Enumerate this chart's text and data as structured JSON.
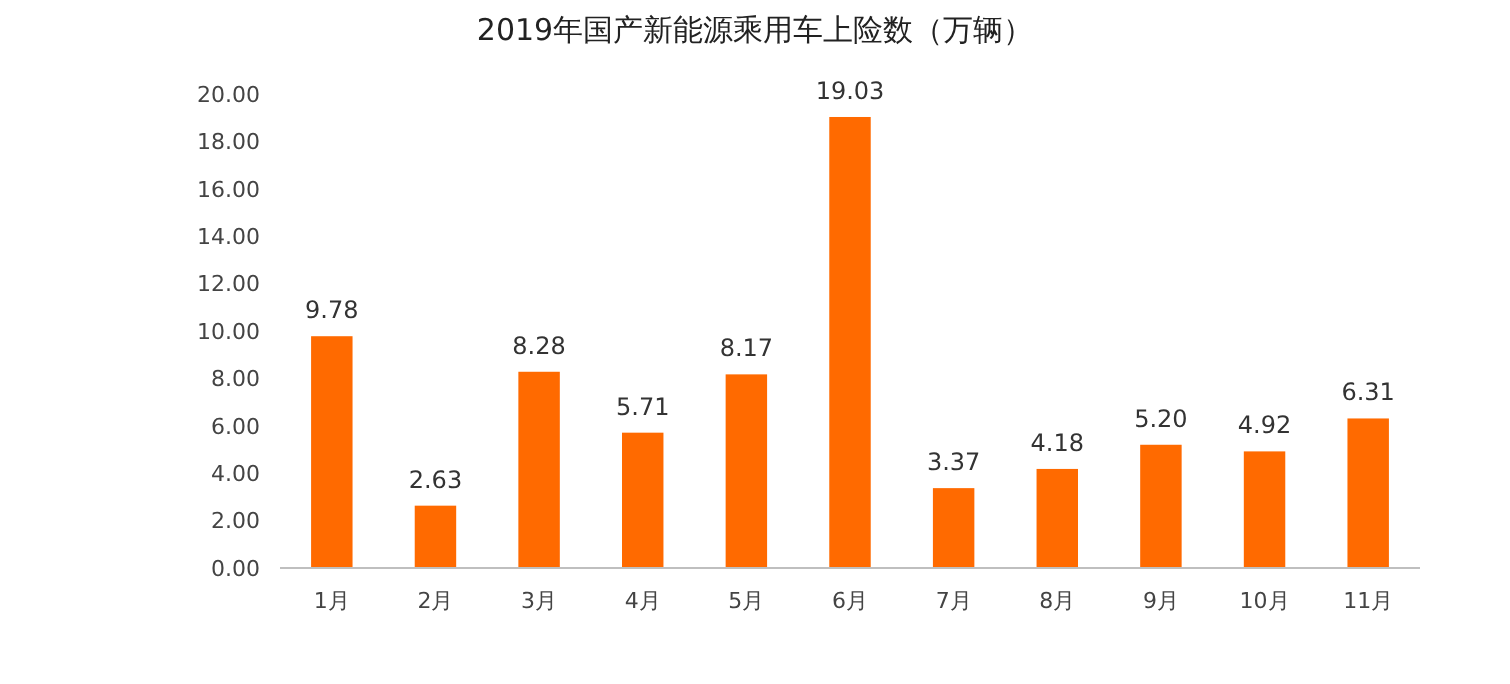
{
  "chart_data": {
    "type": "bar",
    "title": "2019年国产新能源乘用车上险数（万辆）",
    "categories": [
      "1月",
      "2月",
      "3月",
      "4月",
      "5月",
      "6月",
      "7月",
      "8月",
      "9月",
      "10月",
      "11月"
    ],
    "values": [
      9.78,
      2.63,
      8.28,
      5.71,
      8.17,
      19.03,
      3.37,
      4.18,
      5.2,
      4.92,
      6.31
    ],
    "value_labels": [
      "9.78",
      "2.63",
      "8.28",
      "5.71",
      "8.17",
      "19.03",
      "3.37",
      "4.18",
      "5.20",
      "4.92",
      "6.31"
    ],
    "color": "#ff6a00",
    "ylim": [
      0,
      20
    ],
    "yticks": [
      {
        "value": 0,
        "label": "0.00"
      },
      {
        "value": 2,
        "label": "2.00"
      },
      {
        "value": 4,
        "label": "4.00"
      },
      {
        "value": 6,
        "label": "6.00"
      },
      {
        "value": 8,
        "label": "8.00"
      },
      {
        "value": 10,
        "label": "10.00"
      },
      {
        "value": 12,
        "label": "12.00"
      },
      {
        "value": 14,
        "label": "14.00"
      },
      {
        "value": 16,
        "label": "16.00"
      },
      {
        "value": 18,
        "label": "18.00"
      },
      {
        "value": 20,
        "label": "20.00"
      }
    ]
  }
}
